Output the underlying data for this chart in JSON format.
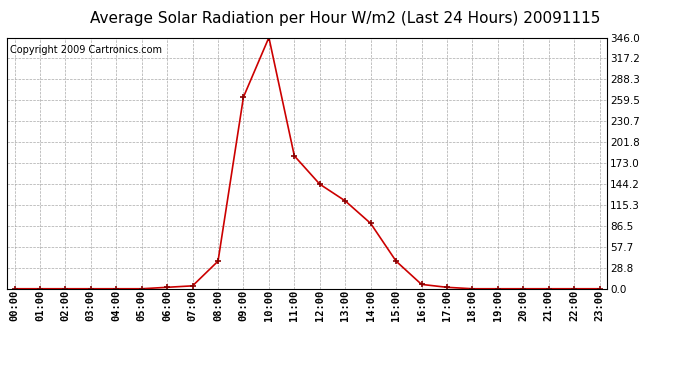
{
  "title": "Average Solar Radiation per Hour W/m2 (Last 24 Hours) 20091115",
  "copyright": "Copyright 2009 Cartronics.com",
  "hours": [
    "00:00",
    "01:00",
    "02:00",
    "03:00",
    "04:00",
    "05:00",
    "06:00",
    "07:00",
    "08:00",
    "09:00",
    "10:00",
    "11:00",
    "12:00",
    "13:00",
    "14:00",
    "15:00",
    "16:00",
    "17:00",
    "18:00",
    "19:00",
    "20:00",
    "21:00",
    "22:00",
    "23:00"
  ],
  "values": [
    0,
    0,
    0,
    0,
    0,
    0,
    2,
    4,
    38,
    264,
    346,
    183,
    144,
    121,
    90,
    38,
    6,
    2,
    0,
    0,
    0,
    0,
    0,
    0
  ],
  "line_color": "#cc0000",
  "marker_color": "#880000",
  "bg_color": "#ffffff",
  "grid_color": "#aaaaaa",
  "ylim": [
    0,
    346.0
  ],
  "yticks": [
    0.0,
    28.8,
    57.7,
    86.5,
    115.3,
    144.2,
    173.0,
    201.8,
    230.7,
    259.5,
    288.3,
    317.2,
    346.0
  ],
  "title_fontsize": 11,
  "copyright_fontsize": 7,
  "tick_fontsize": 7.5,
  "border_color": "#000000"
}
